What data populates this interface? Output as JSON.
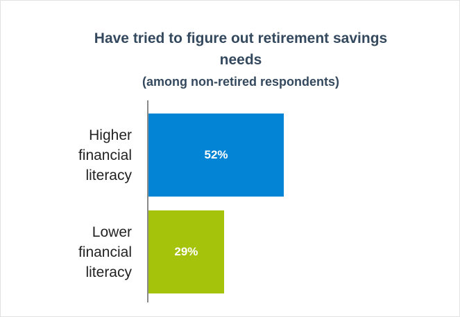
{
  "chart_data": {
    "type": "bar",
    "orientation": "horizontal",
    "title": "Have tried to figure out retirement savings needs",
    "subtitle": "(among non-retired respondents)",
    "categories": [
      "Higher financial literacy",
      "Lower financial literacy"
    ],
    "values": [
      52,
      29
    ],
    "value_labels": [
      "52%",
      "29%"
    ],
    "colors": [
      "#0384d4",
      "#a4c30a"
    ]
  }
}
